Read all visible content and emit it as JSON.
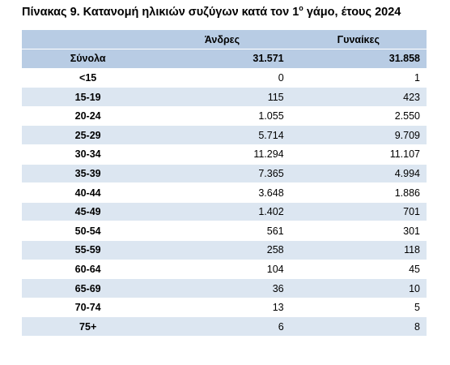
{
  "title": {
    "main": "Πίνακας 9. Κατανομή ηλικιών συζύγων κατά τον 1",
    "sup": "ο",
    "rest": " γάμο, έτους 2024"
  },
  "table": {
    "header": [
      "Άνδρες",
      "Γυναίκες"
    ],
    "total": [
      "Σύνολα",
      "31.571",
      "31.858"
    ],
    "rows": [
      [
        "<15",
        "0",
        "1"
      ],
      [
        "15-19",
        "115",
        "423"
      ],
      [
        "20-24",
        "1.055",
        "2.550"
      ],
      [
        "25-29",
        "5.714",
        "9.709"
      ],
      [
        "30-34",
        "11.294",
        "11.107"
      ],
      [
        "35-39",
        "7.365",
        "4.994"
      ],
      [
        "40-44",
        "3.648",
        "1.886"
      ],
      [
        "45-49",
        "1.402",
        "701"
      ],
      [
        "50-54",
        "561",
        "301"
      ],
      [
        "55-59",
        "258",
        "118"
      ],
      [
        "60-64",
        "104",
        "45"
      ],
      [
        "65-69",
        "36",
        "10"
      ],
      [
        "70-74",
        "13",
        "5"
      ],
      [
        "75+",
        "6",
        "8"
      ]
    ]
  }
}
